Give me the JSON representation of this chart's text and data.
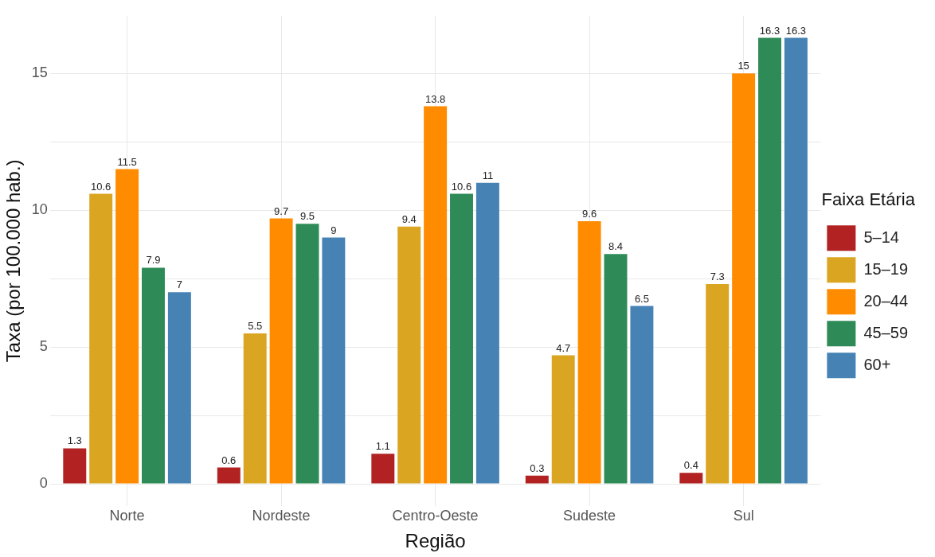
{
  "chart_data": {
    "type": "bar",
    "xlabel": "Região",
    "ylabel": "Taxa (por 100.000 hab.)",
    "legend_title": "Faixa Etária",
    "categories": [
      "Norte",
      "Nordeste",
      "Centro-Oeste",
      "Sudeste",
      "Sul"
    ],
    "series": [
      {
        "name": "5–14",
        "color": "#b22222",
        "values": [
          1.3,
          0.6,
          1.1,
          0.3,
          0.4
        ]
      },
      {
        "name": "15–19",
        "color": "#daa520",
        "values": [
          10.6,
          5.5,
          9.4,
          4.7,
          7.3
        ]
      },
      {
        "name": "20–44",
        "color": "#ff8c00",
        "values": [
          11.5,
          9.7,
          13.8,
          9.6,
          15
        ]
      },
      {
        "name": "45–59",
        "color": "#2e8b57",
        "values": [
          7.9,
          9.5,
          10.6,
          8.4,
          16.3
        ]
      },
      {
        "name": "60+",
        "color": "#4682b4",
        "values": [
          7,
          9,
          11,
          6.5,
          16.3
        ]
      }
    ],
    "ylim": [
      -0.8,
      17.1
    ],
    "yticks": [
      0,
      {
        "value": 2.5,
        "label": null
      },
      5,
      {
        "value": 7.5,
        "label": null
      },
      10,
      {
        "value": 12.5,
        "label": null
      },
      15
    ],
    "grid": true,
    "legend": "right",
    "data_labels": true
  }
}
